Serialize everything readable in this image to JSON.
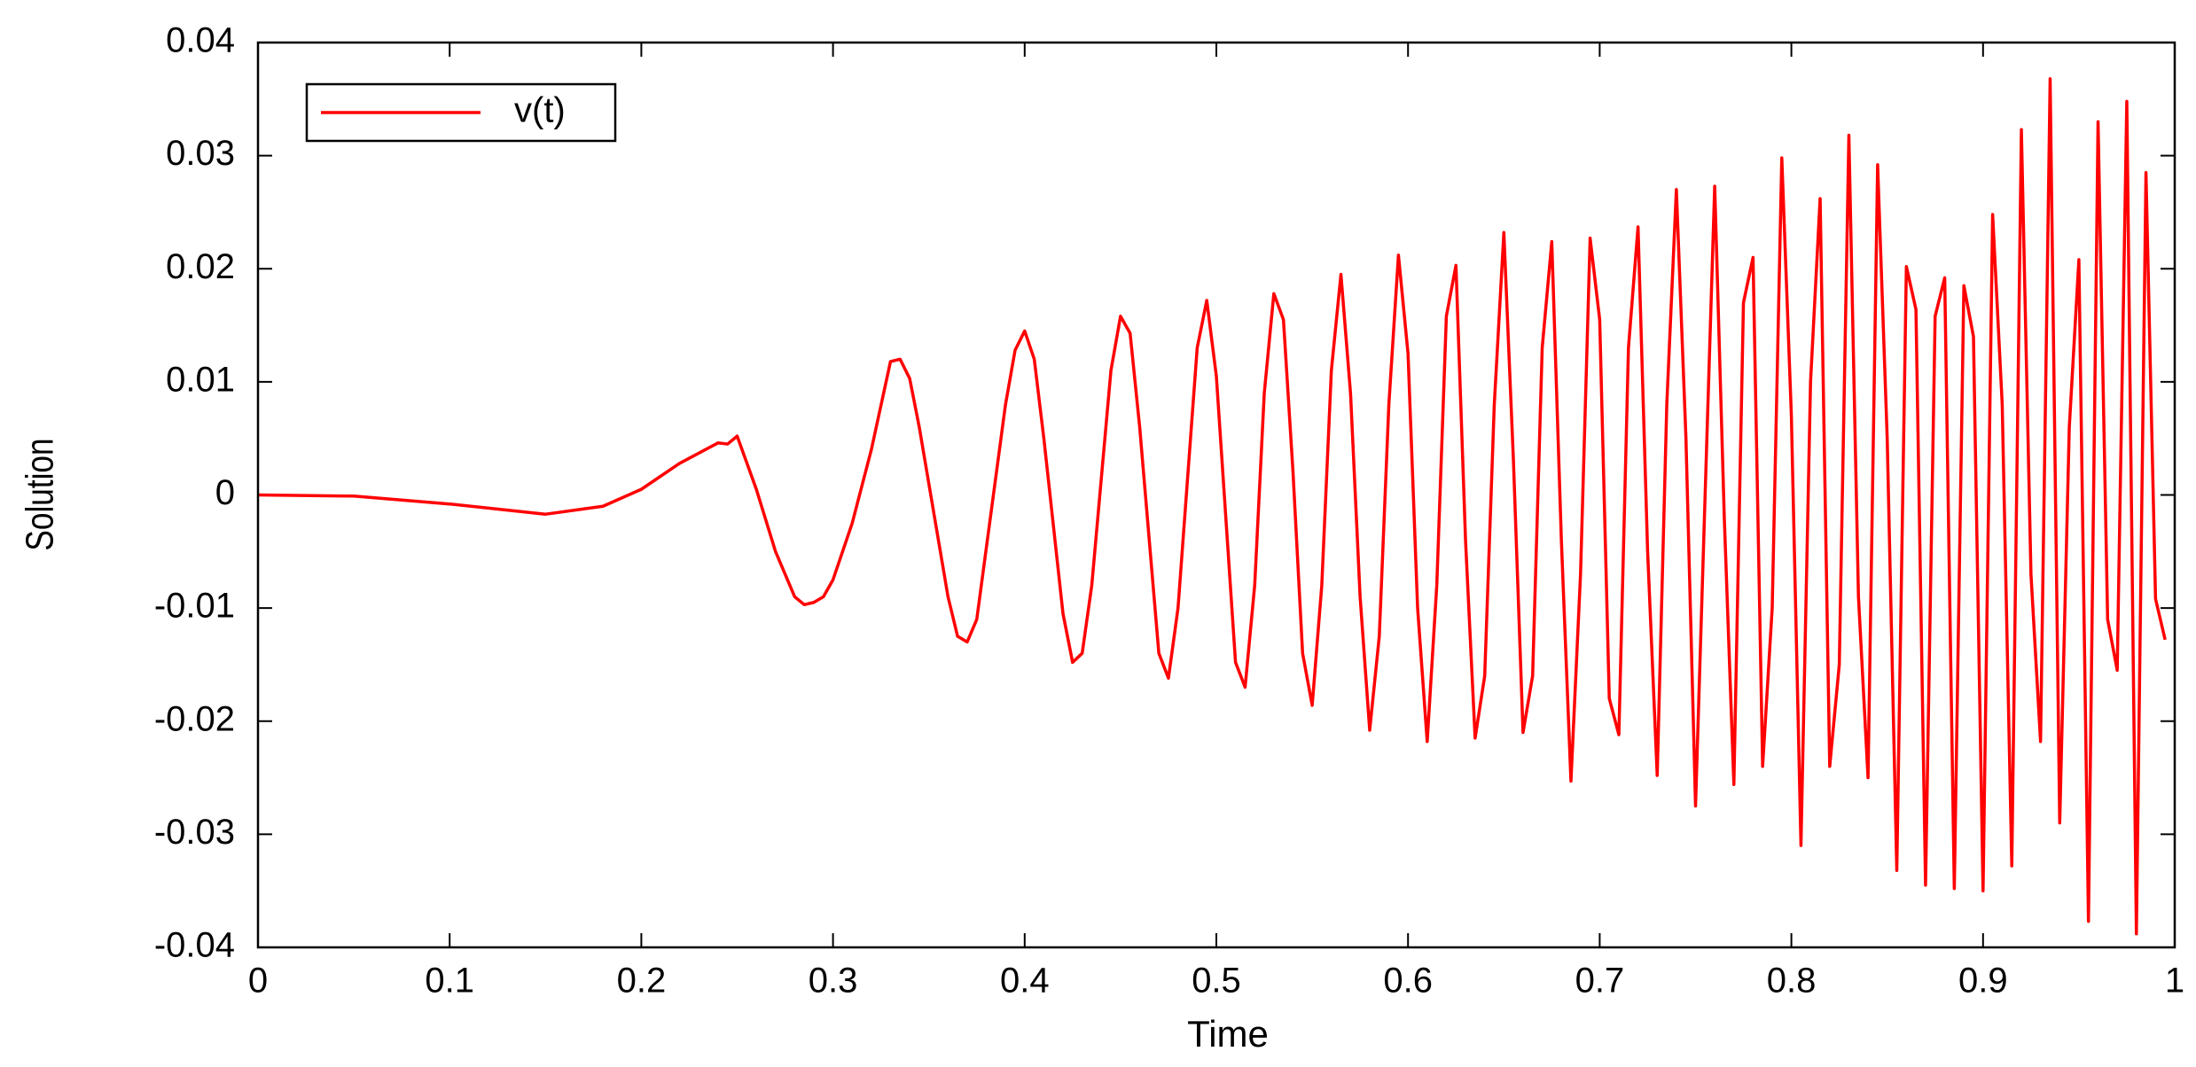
{
  "chart_data": {
    "type": "line",
    "x_label": "Time",
    "y_label": "Solution",
    "x": [
      0,
      0.05,
      0.1,
      0.15,
      0.18,
      0.2,
      0.22,
      0.24,
      0.245,
      0.25,
      0.26,
      0.27,
      0.28,
      0.285,
      0.29,
      0.295,
      0.3,
      0.31,
      0.32,
      0.33,
      0.335,
      0.34,
      0.345,
      0.36,
      0.365,
      0.37,
      0.375,
      0.39,
      0.395,
      0.4,
      0.405,
      0.41,
      0.42,
      0.425,
      0.43,
      0.435,
      0.445,
      0.45,
      0.455,
      0.46,
      0.47,
      0.475,
      0.48,
      0.49,
      0.495,
      0.5,
      0.51,
      0.515,
      0.52,
      0.525,
      0.53,
      0.535,
      0.54,
      0.545,
      0.55,
      0.555,
      0.56,
      0.565,
      0.57,
      0.575,
      0.58,
      0.585,
      0.59,
      0.595,
      0.6,
      0.605,
      0.61,
      0.615,
      0.62,
      0.625,
      0.63,
      0.635,
      0.64,
      0.645,
      0.65,
      0.655,
      0.66,
      0.665,
      0.67,
      0.675,
      0.68,
      0.685,
      0.69,
      0.695,
      0.7,
      0.705,
      0.71,
      0.715,
      0.72,
      0.725,
      0.73,
      0.735,
      0.74,
      0.745,
      0.75,
      0.755,
      0.76,
      0.765,
      0.77,
      0.775,
      0.78,
      0.785,
      0.79,
      0.795,
      0.8,
      0.805,
      0.81,
      0.815,
      0.82,
      0.825,
      0.83,
      0.835,
      0.84,
      0.845,
      0.85,
      0.855,
      0.86,
      0.865,
      0.87,
      0.875,
      0.88,
      0.885,
      0.89,
      0.895,
      0.9,
      0.905,
      0.91,
      0.915,
      0.92,
      0.925,
      0.93,
      0.935,
      0.94,
      0.945,
      0.95,
      0.955,
      0.96,
      0.965,
      0.97,
      0.975,
      0.98,
      0.985,
      0.99,
      0.995
    ],
    "series": [
      {
        "name": "v(t)",
        "color": "#ff0000",
        "values": [
          0,
          -0.0001,
          -0.0008,
          -0.0017,
          -0.001,
          0.0005,
          0.0028,
          0.0046,
          0.0045,
          0.0052,
          0.0005,
          -0.005,
          -0.009,
          -0.0097,
          -0.0095,
          -0.009,
          -0.0075,
          -0.0025,
          0.004,
          0.0118,
          0.012,
          0.0103,
          0.006,
          -0.009,
          -0.0125,
          -0.013,
          -0.011,
          0.008,
          0.0128,
          0.0145,
          0.012,
          0.005,
          -0.0105,
          -0.0148,
          -0.014,
          -0.008,
          0.011,
          0.0158,
          0.0143,
          0.006,
          -0.014,
          -0.0162,
          -0.01,
          0.013,
          0.0172,
          0.0105,
          -0.0148,
          -0.017,
          -0.008,
          0.009,
          0.0178,
          0.0155,
          0.002,
          -0.014,
          -0.0186,
          -0.008,
          0.011,
          0.0195,
          0.009,
          -0.009,
          -0.0208,
          -0.0125,
          0.008,
          0.0212,
          0.0125,
          -0.01,
          -0.0218,
          -0.008,
          0.0158,
          0.0203,
          -0.004,
          -0.0215,
          -0.016,
          0.008,
          0.0232,
          0.003,
          -0.021,
          -0.016,
          0.013,
          0.0224,
          -0.004,
          -0.0253,
          -0.007,
          0.0227,
          0.0155,
          -0.018,
          -0.0212,
          0.013,
          0.0237,
          -0.005,
          -0.0248,
          0.008,
          0.027,
          0.005,
          -0.0275,
          0,
          0.0273,
          -0.002,
          -0.0256,
          0.017,
          0.021,
          -0.024,
          -0.01,
          0.0298,
          0.007,
          -0.031,
          0.01,
          0.0262,
          -0.024,
          -0.015,
          0.0318,
          -0.009,
          -0.025,
          0.0292,
          0.005,
          -0.0332,
          0.0202,
          0.0164,
          -0.0345,
          0.0158,
          0.0192,
          -0.0348,
          0.0185,
          0.014,
          -0.035,
          0.0248,
          0.008,
          -0.0328,
          0.0323,
          -0.007,
          -0.0218,
          0.0368,
          -0.029,
          0.006,
          0.0208,
          -0.0377,
          0.033,
          -0.011,
          -0.0155,
          0.0348,
          -0.0388,
          0.0285,
          -0.0092,
          -0.0128
        ]
      }
    ],
    "xlim": [
      0,
      1
    ],
    "ylim": [
      -0.04,
      0.04
    ],
    "xticks": [
      0,
      0.1,
      0.2,
      0.3,
      0.4,
      0.5,
      0.6,
      0.7,
      0.8,
      0.9,
      1
    ],
    "yticks": [
      -0.04,
      -0.03,
      -0.02,
      -0.01,
      0,
      0.01,
      0.02,
      0.03,
      0.04
    ],
    "grid": false,
    "legend": "upper-left"
  }
}
